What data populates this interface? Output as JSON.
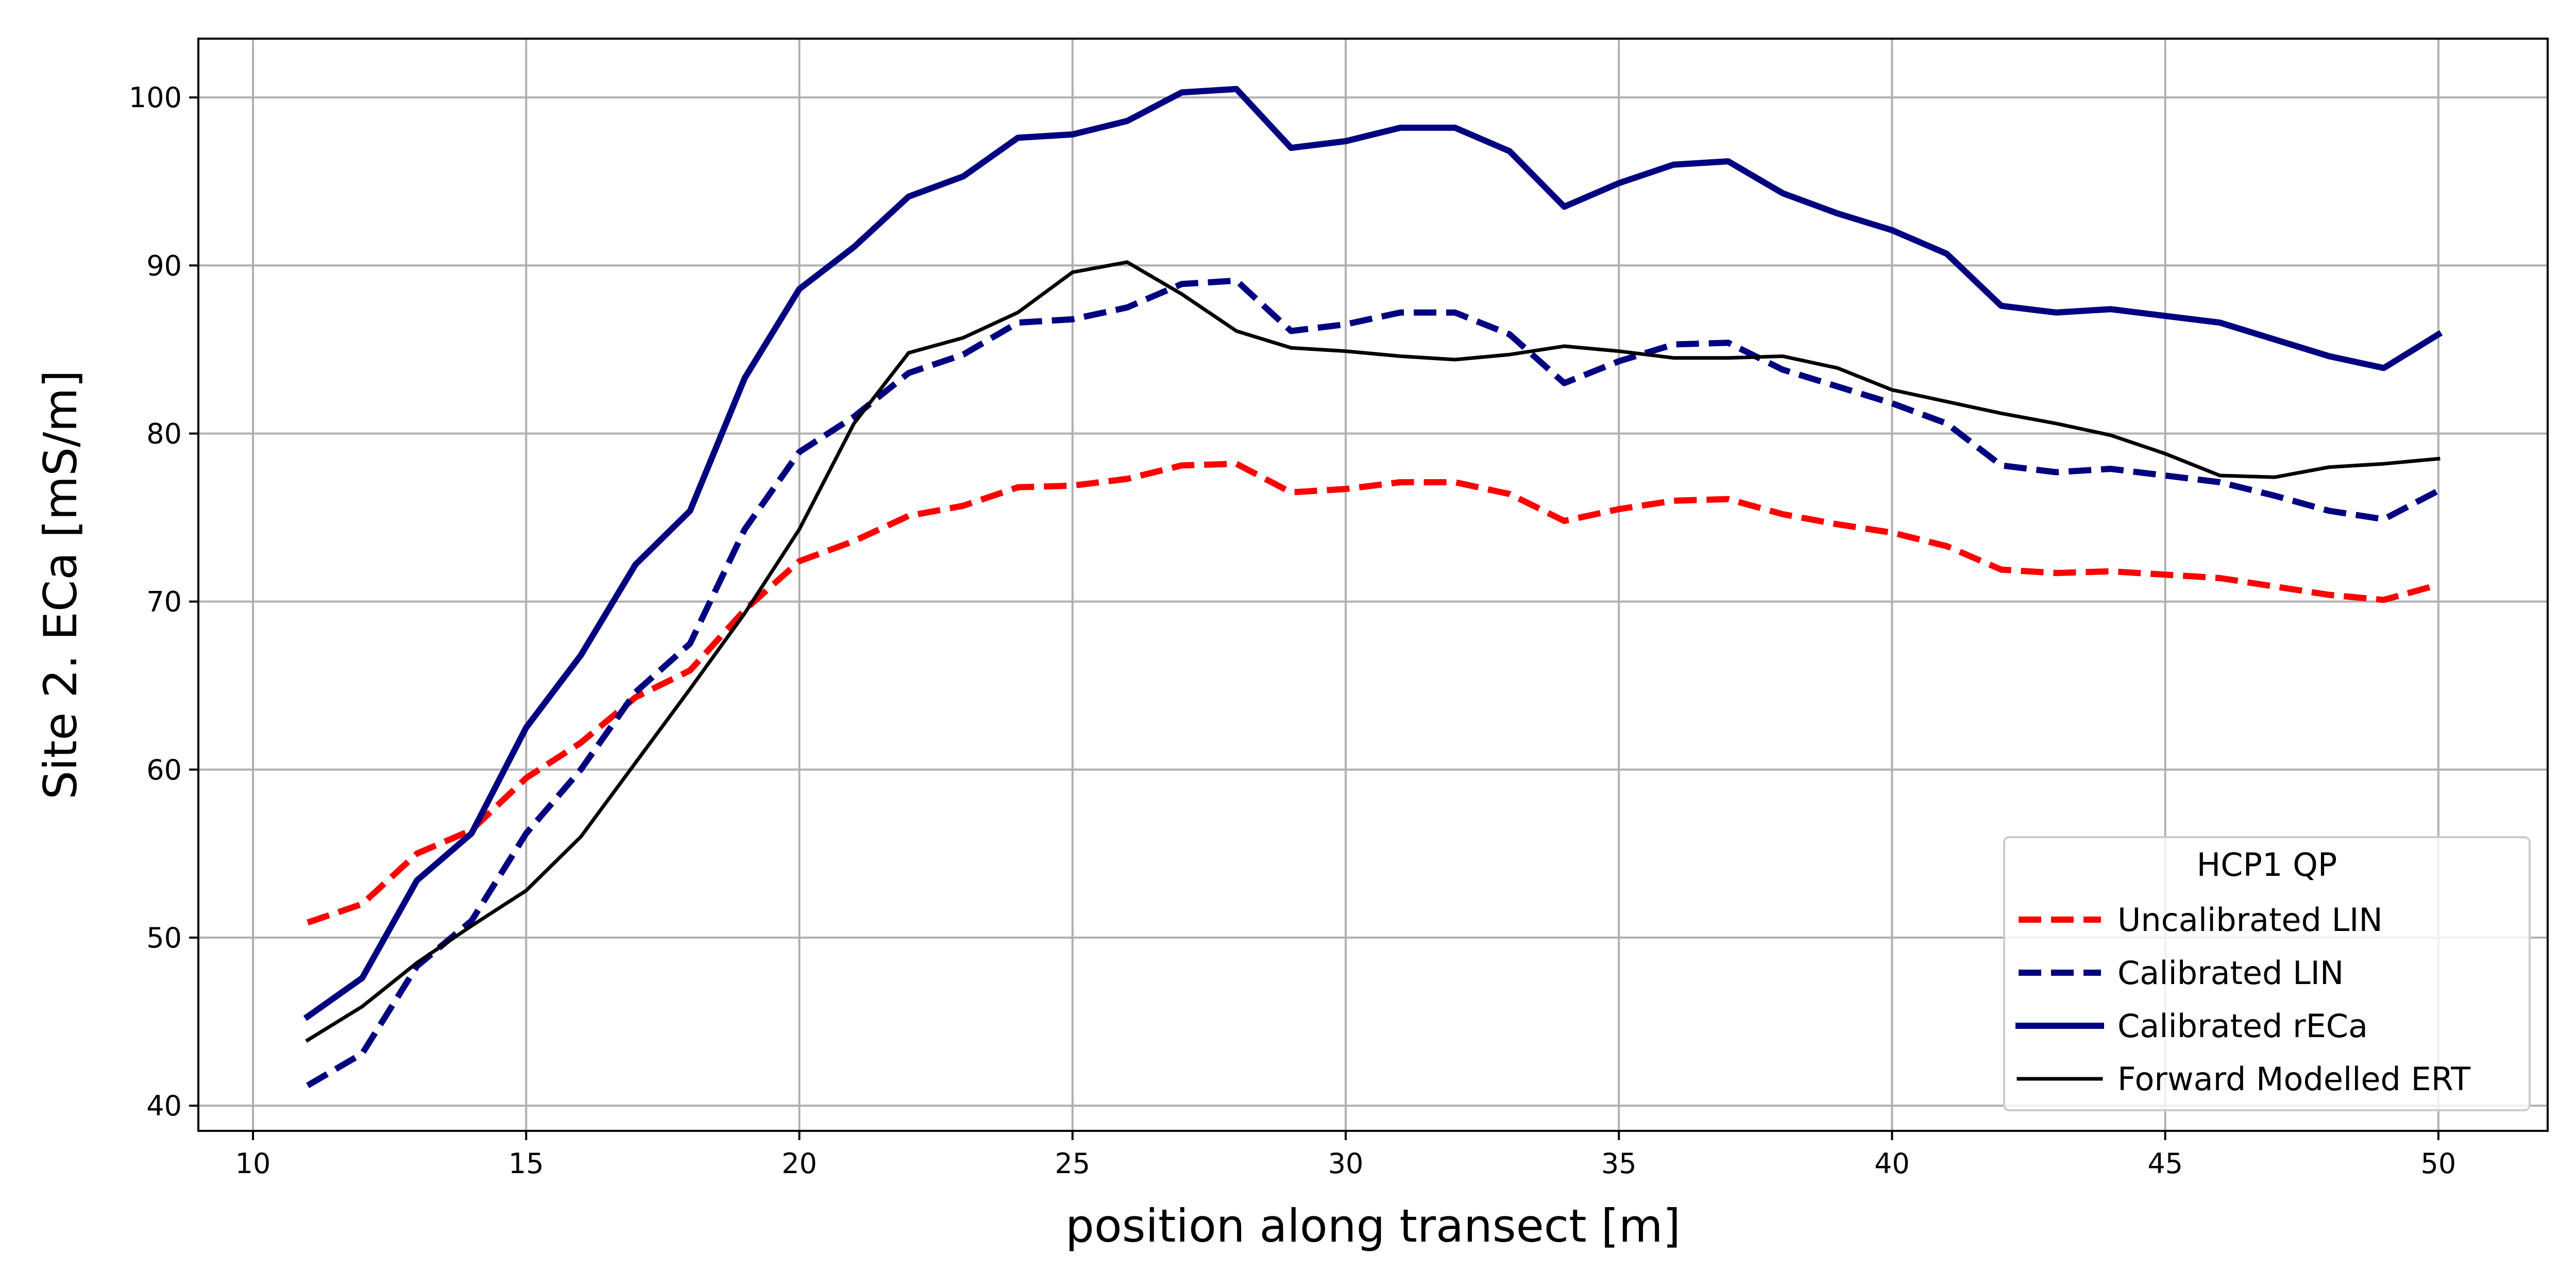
{
  "chart_data": {
    "type": "line",
    "title": "",
    "xlabel": "position along transect [m]",
    "ylabel": "Site 2. ECa [mS/m]",
    "xlim": [
      9,
      52
    ],
    "ylim": [
      38.5,
      103.5
    ],
    "xticks": [
      10,
      15,
      20,
      25,
      30,
      35,
      40,
      45,
      50
    ],
    "yticks": [
      40,
      50,
      60,
      70,
      80,
      90,
      100
    ],
    "grid": true,
    "legend": {
      "title": "HCP1 QP",
      "placement": "lower-right"
    },
    "x": [
      11,
      12,
      13,
      14,
      15,
      16,
      17,
      18,
      19,
      20,
      21,
      22,
      23,
      24,
      25,
      26,
      27,
      28,
      29,
      30,
      31,
      32,
      33,
      34,
      35,
      36,
      37,
      38,
      39,
      40,
      41,
      42,
      43,
      44,
      45,
      46,
      47,
      48,
      49,
      50
    ],
    "series": [
      {
        "name": "Uncalibrated LIN",
        "color": "#ff0000",
        "style": "dashed",
        "values": [
          50.9,
          52.0,
          55.0,
          56.4,
          59.5,
          61.6,
          64.3,
          65.9,
          69.5,
          72.4,
          73.6,
          75.1,
          75.7,
          76.8,
          76.9,
          77.3,
          78.1,
          78.2,
          76.5,
          76.7,
          77.1,
          77.1,
          76.4,
          74.8,
          75.5,
          76.0,
          76.1,
          75.2,
          74.6,
          74.1,
          73.3,
          71.9,
          71.7,
          71.8,
          71.6,
          71.4,
          70.9,
          70.4,
          70.1,
          71.0
        ]
      },
      {
        "name": "Calibrated LIN",
        "color": "#000080",
        "style": "dashed",
        "values": [
          41.2,
          43.1,
          48.3,
          51.0,
          56.2,
          60.0,
          64.6,
          67.5,
          74.3,
          78.9,
          81.0,
          83.6,
          84.7,
          86.6,
          86.8,
          87.5,
          88.9,
          89.1,
          86.1,
          86.5,
          87.2,
          87.2,
          85.9,
          83.0,
          84.3,
          85.3,
          85.4,
          83.8,
          82.8,
          81.8,
          80.6,
          78.1,
          77.7,
          77.9,
          77.5,
          77.1,
          76.3,
          75.4,
          74.9,
          76.6
        ]
      },
      {
        "name": "Calibrated rECa",
        "color": "#000080",
        "style": "solid-thick",
        "values": [
          45.3,
          47.6,
          53.4,
          56.2,
          62.5,
          66.8,
          72.2,
          75.4,
          83.3,
          88.6,
          91.1,
          94.1,
          95.3,
          97.6,
          97.8,
          98.6,
          100.3,
          100.5,
          97.0,
          97.4,
          98.2,
          98.2,
          96.8,
          93.5,
          94.9,
          96.0,
          96.2,
          94.3,
          93.1,
          92.1,
          90.7,
          87.6,
          87.2,
          87.4,
          87.0,
          86.6,
          85.6,
          84.6,
          83.9,
          85.9
        ]
      },
      {
        "name": "Forward Modelled ERT",
        "color": "#000000",
        "style": "solid",
        "values": [
          43.9,
          45.9,
          48.5,
          50.7,
          52.8,
          56.0,
          60.4,
          64.8,
          69.3,
          74.3,
          80.6,
          84.8,
          85.7,
          87.2,
          89.6,
          90.2,
          88.3,
          86.1,
          85.1,
          84.9,
          84.6,
          84.4,
          84.7,
          85.2,
          84.9,
          84.5,
          84.5,
          84.6,
          83.9,
          82.6,
          81.9,
          81.2,
          80.6,
          79.9,
          78.8,
          77.5,
          77.4,
          78.0,
          78.2,
          78.5
        ]
      }
    ]
  }
}
